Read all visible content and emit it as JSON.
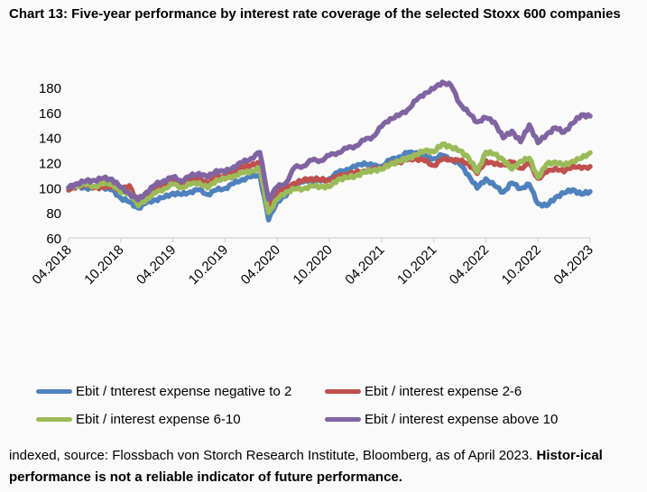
{
  "chart_data": {
    "type": "line",
    "title": "Chart 13: Five-year performance by interest rate coverage of the selected Stoxx 600 companies",
    "xlabel": "",
    "ylabel": "",
    "ylim": [
      60,
      180
    ],
    "yticks": [
      "60",
      "80",
      "100",
      "120",
      "140",
      "160",
      "180"
    ],
    "xticks": [
      "04.2018",
      "10.2018",
      "04.2019",
      "10.2019",
      "04.2020",
      "10.2020",
      "04.2021",
      "10.2021",
      "04.2022",
      "10.2022",
      "04.2023"
    ],
    "x_note": "monthly points from 04.2018 to 04.2023",
    "series": [
      {
        "name": "Ebit / tnterest expense negative to 2",
        "color": "#4f81bd",
        "values": [
          100,
          101,
          99,
          100,
          101,
          99,
          92,
          88,
          83,
          88,
          91,
          93,
          96,
          94,
          96,
          98,
          95,
          99,
          100,
          103,
          106,
          108,
          111,
          75,
          90,
          93,
          101,
          104,
          106,
          106,
          108,
          112,
          114,
          116,
          120,
          118,
          118,
          122,
          124,
          127,
          128,
          126,
          124,
          126,
          122,
          118,
          110,
          100,
          108,
          102,
          96,
          103,
          99,
          103,
          88,
          86,
          92,
          95,
          98,
          95,
          97
        ]
      },
      {
        "name": "Ebit / interest expense 2-6",
        "color": "#c0504d",
        "values": [
          98,
          101,
          102,
          101,
          101,
          102,
          97,
          101,
          88,
          95,
          100,
          103,
          105,
          103,
          106,
          108,
          104,
          109,
          108,
          112,
          116,
          118,
          121,
          85,
          96,
          99,
          103,
          106,
          108,
          107,
          106,
          108,
          110,
          112,
          114,
          115,
          116,
          118,
          120,
          122,
          124,
          122,
          118,
          122,
          122,
          121,
          120,
          112,
          122,
          118,
          118,
          120,
          116,
          120,
          108,
          112,
          115,
          112,
          118,
          116,
          117
        ]
      },
      {
        "name": "Ebit / interest expense 6-10",
        "color": "#9bbb59",
        "values": [
          100,
          102,
          103,
          102,
          103,
          103,
          95,
          96,
          86,
          92,
          96,
          99,
          102,
          100,
          103,
          105,
          100,
          106,
          106,
          109,
          112,
          114,
          116,
          80,
          90,
          96,
          99,
          100,
          102,
          101,
          100,
          106,
          108,
          110,
          113,
          114,
          114,
          118,
          121,
          124,
          127,
          130,
          128,
          134,
          132,
          130,
          125,
          113,
          128,
          126,
          122,
          115,
          122,
          124,
          108,
          118,
          120,
          118,
          122,
          124,
          128
        ]
      },
      {
        "name": "Ebit / interest expense above 10",
        "color": "#8064a2",
        "values": [
          100,
          104,
          106,
          106,
          107,
          106,
          100,
          96,
          91,
          97,
          102,
          105,
          108,
          106,
          110,
          112,
          108,
          113,
          112,
          117,
          121,
          124,
          128,
          90,
          100,
          104,
          117,
          118,
          122,
          121,
          125,
          128,
          132,
          134,
          138,
          140,
          148,
          155,
          158,
          163,
          170,
          175,
          178,
          184,
          182,
          168,
          160,
          152,
          155,
          152,
          140,
          146,
          137,
          150,
          135,
          142,
          148,
          145,
          152,
          158,
          157
        ]
      }
    ],
    "legend_placement": "bottom",
    "grid": false
  },
  "footnote": {
    "normal": "indexed, source: Flossbach von Storch Research Institute, Bloomberg, as of April 2023. ",
    "bold": "Histor-ical performance is not a reliable indicator of future performance."
  }
}
